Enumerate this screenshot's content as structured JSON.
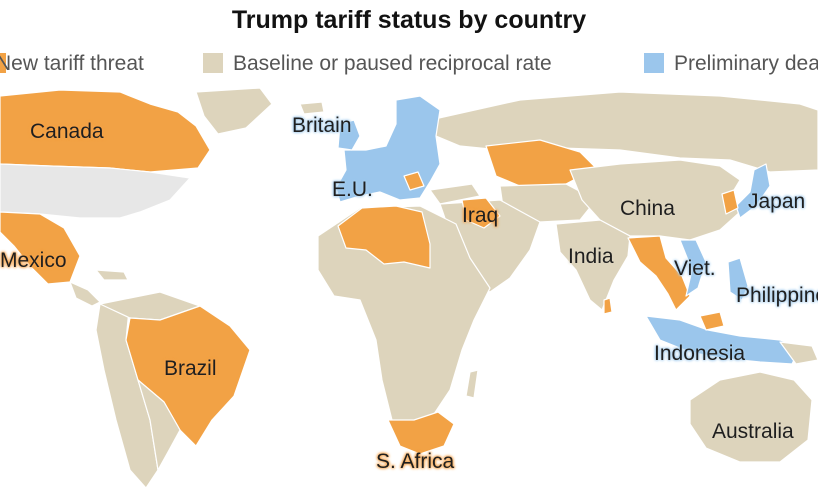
{
  "title": "Trump tariff status by country",
  "legend": [
    {
      "label": "New tariff threat",
      "color": "#f2a245"
    },
    {
      "label": "Baseline or paused reciprocal rate",
      "color": "#ddd4bc"
    },
    {
      "label": "Preliminary deal",
      "color": "#9bc6ec"
    }
  ],
  "colors": {
    "threat": "#f2a245",
    "baseline": "#ddd4bc",
    "deal": "#9bc6ec",
    "us": "#e7e7e7",
    "border": "#ffffff"
  },
  "labels": {
    "canada": "Canada",
    "mexico": "Mexico",
    "brazil": "Brazil",
    "britain": "Britain",
    "eu": "E.U.",
    "iraq": "Iraq",
    "china": "China",
    "india": "India",
    "japan": "Japan",
    "viet": "Viet.",
    "philippines": "Philippines",
    "indonesia": "Indonesia",
    "safrica": "S. Africa",
    "australia": "Australia"
  }
}
